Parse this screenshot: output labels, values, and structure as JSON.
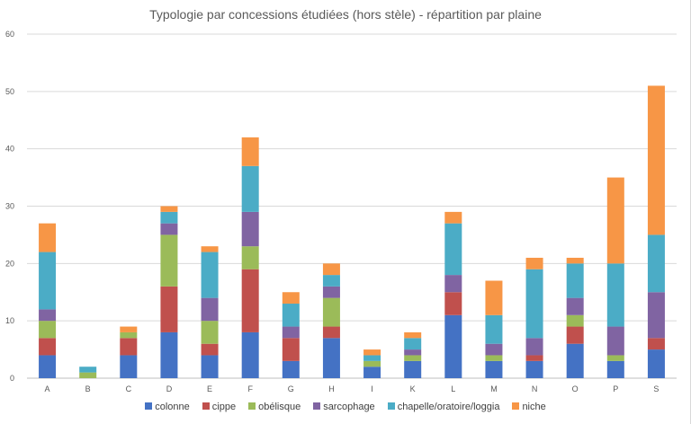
{
  "chart_data": {
    "type": "bar",
    "stacked": true,
    "title": "Typologie par concessions étudiées (hors stèle) - répartition par plaine",
    "categories": [
      "A",
      "B",
      "C",
      "D",
      "E",
      "F",
      "G",
      "H",
      "I",
      "K",
      "L",
      "M",
      "N",
      "O",
      "P",
      "S"
    ],
    "ylim": [
      0,
      60
    ],
    "yticks": [
      0,
      10,
      20,
      30,
      40,
      50,
      60
    ],
    "grid": true,
    "legend_position": "bottom",
    "series": [
      {
        "name": "colonne",
        "color": "#4472c4",
        "values": [
          4,
          0,
          4,
          8,
          4,
          8,
          3,
          7,
          2,
          3,
          11,
          3,
          3,
          6,
          3,
          5
        ]
      },
      {
        "name": "cippe",
        "color": "#c0504d",
        "values": [
          3,
          0,
          3,
          8,
          2,
          11,
          4,
          2,
          0,
          0,
          4,
          0,
          1,
          3,
          0,
          2
        ]
      },
      {
        "name": "obélisque",
        "color": "#9bbb59",
        "values": [
          3,
          1,
          1,
          9,
          4,
          4,
          0,
          5,
          1,
          1,
          0,
          1,
          0,
          2,
          1,
          0
        ]
      },
      {
        "name": "sarcophage",
        "color": "#8064a2",
        "values": [
          2,
          0,
          0,
          2,
          4,
          6,
          2,
          2,
          0,
          1,
          3,
          2,
          3,
          3,
          5,
          8
        ]
      },
      {
        "name": "chapelle/oratoire/loggia",
        "color": "#4bacc6",
        "values": [
          10,
          1,
          0,
          2,
          8,
          8,
          4,
          2,
          1,
          2,
          9,
          5,
          12,
          6,
          11,
          10
        ]
      },
      {
        "name": "niche",
        "color": "#f79646",
        "values": [
          5,
          0,
          1,
          1,
          1,
          5,
          2,
          2,
          1,
          1,
          2,
          6,
          2,
          1,
          15,
          26
        ]
      }
    ]
  }
}
